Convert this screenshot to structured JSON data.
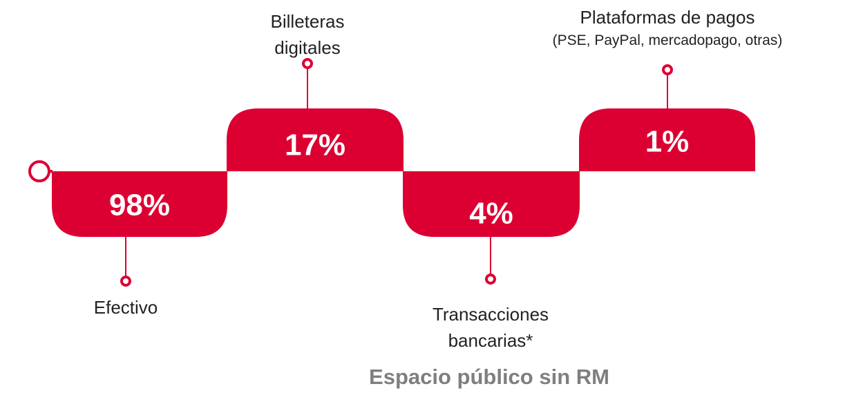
{
  "title": "Espacio público sin RM",
  "items": [
    {
      "label": "Efectivo",
      "value": "98%"
    },
    {
      "label": "Billeteras digitales",
      "value": "17%"
    },
    {
      "label": "Transacciones bancarias*",
      "value": "4%"
    },
    {
      "label": "Plataformas de pagos",
      "sublabel": "(PSE, PayPal, mercadopago, otras)",
      "value": "1%"
    }
  ]
}
